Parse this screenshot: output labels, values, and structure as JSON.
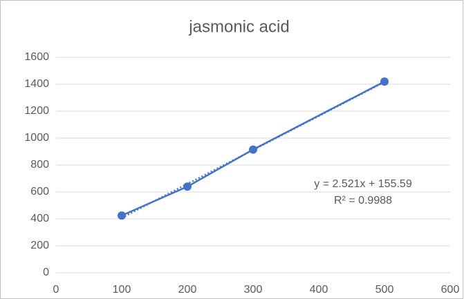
{
  "chart_data": {
    "type": "scatter",
    "title": "jasmonic acid",
    "series": [
      {
        "color": "#4472c4",
        "x": [
          100,
          200,
          300,
          500
        ],
        "values": [
          425,
          640,
          915,
          1420
        ]
      }
    ],
    "trendline": {
      "color": "#4472c4",
      "x": [
        100,
        500
      ],
      "values": [
        408,
        1416
      ]
    },
    "annotations": [
      "y = 2.521x + 155.59",
      "R² = 0.9988"
    ],
    "xlim": [
      0,
      600
    ],
    "xticks": [
      0,
      100,
      200,
      300,
      400,
      500,
      600
    ],
    "ylim": [
      0,
      1600
    ],
    "yticks": [
      0,
      200,
      400,
      600,
      800,
      1000,
      1200,
      1400,
      1600
    ],
    "grid": true
  }
}
